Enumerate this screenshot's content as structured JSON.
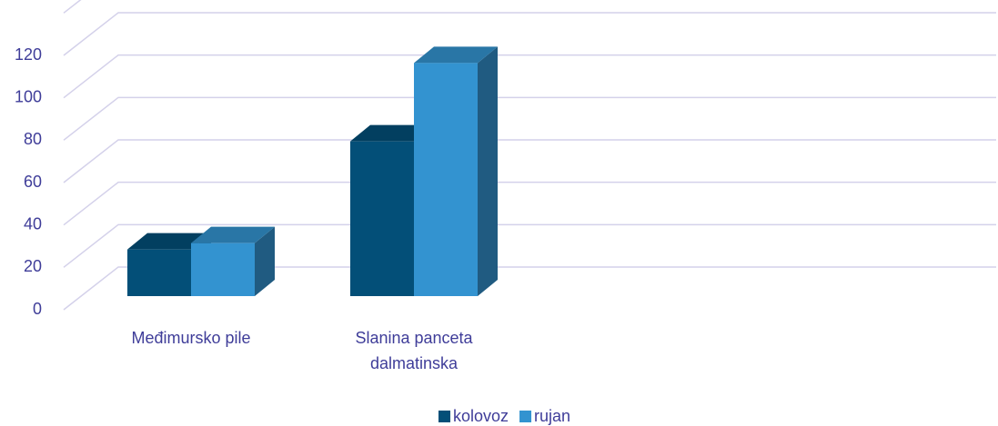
{
  "chart_data": {
    "type": "bar3d",
    "categories": [
      "Međimursko pile",
      "Slanina panceta dalmatinska"
    ],
    "series": [
      {
        "name": "kolovoz",
        "color": "#034f78",
        "values": [
          22,
          73
        ]
      },
      {
        "name": "rujan",
        "color": "#3393d0",
        "values": [
          25,
          110
        ]
      }
    ],
    "ylim": [
      0,
      140
    ],
    "yticks": [
      0,
      20,
      40,
      60,
      80,
      100,
      120
    ],
    "grid": true,
    "legend": "bottom"
  }
}
